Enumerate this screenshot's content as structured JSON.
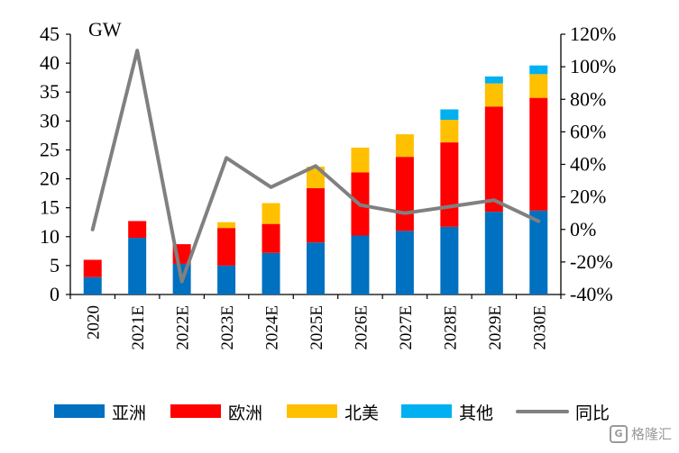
{
  "chart_data": {
    "type": "bar",
    "stacked": true,
    "unit_label": "GW",
    "categories": [
      "2020",
      "2021E",
      "2022E",
      "2023E",
      "2024E",
      "2025E",
      "2026E",
      "2027E",
      "2028E",
      "2029E",
      "2030E"
    ],
    "series": [
      {
        "name": "亚洲",
        "type": "bar",
        "axis": "left",
        "color": "#0070c0",
        "values": [
          3.0,
          9.8,
          5.3,
          5.0,
          7.2,
          9.0,
          10.2,
          11.0,
          11.7,
          14.3,
          14.5
        ]
      },
      {
        "name": "欧洲",
        "type": "bar",
        "axis": "left",
        "color": "#ff0000",
        "values": [
          3.0,
          2.9,
          3.4,
          6.5,
          5.0,
          9.4,
          10.9,
          12.8,
          14.6,
          18.2,
          19.5
        ]
      },
      {
        "name": "北美",
        "type": "bar",
        "axis": "left",
        "color": "#ffc000",
        "values": [
          0,
          0,
          0,
          1.0,
          3.6,
          3.7,
          4.3,
          3.9,
          3.9,
          4.0,
          4.1
        ]
      },
      {
        "name": "其他",
        "type": "bar",
        "axis": "left",
        "color": "#00b0f0",
        "values": [
          0,
          0,
          0,
          0,
          0,
          0,
          0,
          0,
          1.8,
          1.2,
          1.5
        ]
      },
      {
        "name": "同比",
        "type": "line",
        "axis": "right",
        "color": "#808080",
        "values": [
          0,
          110,
          -32,
          44,
          26,
          39,
          15,
          10,
          14,
          18,
          5
        ]
      }
    ],
    "y_left": {
      "min": 0,
      "max": 45,
      "step": 5,
      "ticks": [
        "0",
        "5",
        "10",
        "15",
        "20",
        "25",
        "30",
        "35",
        "40",
        "45"
      ]
    },
    "y_right": {
      "min": -40,
      "max": 120,
      "step": 20,
      "ticks": [
        "-40%",
        "-20%",
        "0%",
        "20%",
        "40%",
        "60%",
        "80%",
        "100%",
        "120%"
      ]
    },
    "grid": false,
    "legend_position": "bottom",
    "watermark": "格隆汇"
  }
}
